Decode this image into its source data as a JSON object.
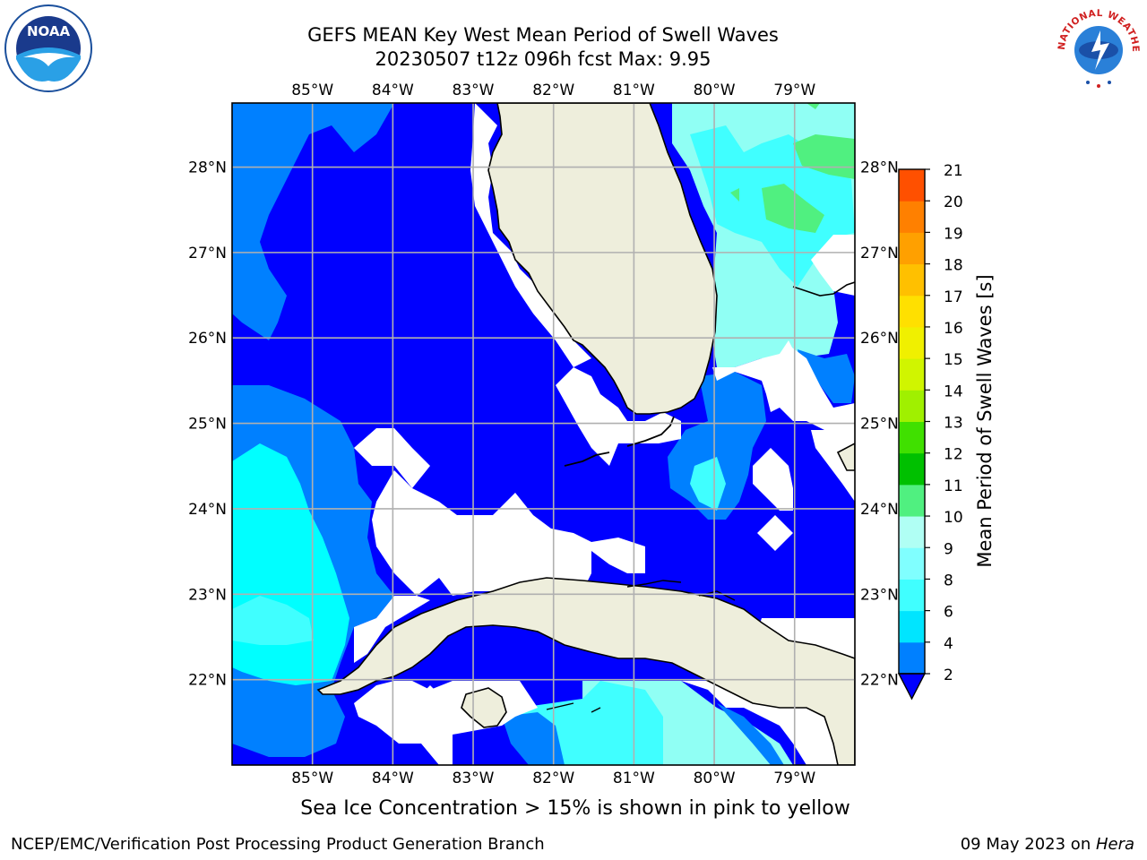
{
  "title": {
    "line1": "GEFS MEAN Key West Mean Period of Swell Waves",
    "line2": "20230507 t12z 096h fcst   Max: 9.95"
  },
  "map": {
    "lon_ticks": [
      "85°W",
      "84°W",
      "83°W",
      "82°W",
      "81°W",
      "80°W",
      "79°W"
    ],
    "lat_ticks": [
      "28°N",
      "27°N",
      "26°N",
      "25°N",
      "24°N",
      "23°N",
      "22°N"
    ],
    "lon_range": [
      -86.0,
      -78.25
    ],
    "lat_range": [
      21.0,
      28.75
    ]
  },
  "colorbar": {
    "label": "Mean Period of Swell Waves [s]",
    "ticks": [
      "21",
      "20",
      "19",
      "18",
      "17",
      "16",
      "15",
      "14",
      "13",
      "12",
      "11",
      "10",
      "9",
      "8",
      "6",
      "4",
      "2"
    ],
    "levels": [
      2,
      4,
      6,
      8,
      9,
      10,
      11,
      12,
      13,
      14,
      15,
      16,
      17,
      18,
      19,
      20,
      21
    ],
    "colors": [
      "#0080ff",
      "#00e5ff",
      "#40ffff",
      "#80ffff",
      "#b0fff4",
      "#50f080",
      "#00c000",
      "#40e000",
      "#a0f000",
      "#d0f500",
      "#f0f000",
      "#ffe000",
      "#ffc000",
      "#ffa000",
      "#ff8000",
      "#ff5000",
      "#ff2000",
      "#ff0000"
    ],
    "extend_color": "#0000ff"
  },
  "colors": {
    "land": "#eeeedc",
    "deep": "#0000ff",
    "blue": "#0080ff",
    "cyan": "#00ffff",
    "lightcyan": "#40ffff",
    "palecyan": "#90fff4",
    "green": "#50f080",
    "grid": "#b0b0b0"
  },
  "footer": {
    "note": "Sea Ice Concentration > 15% is shown in pink to yellow",
    "left": "NCEP/EMC/Verification Post Processing Product Generation Branch",
    "right_date": "09 May 2023 on ",
    "right_host": "Hera"
  },
  "logos": {
    "noaa_text": "NOAA",
    "nws_text": "NATIONAL WEATHER SERVICE"
  }
}
